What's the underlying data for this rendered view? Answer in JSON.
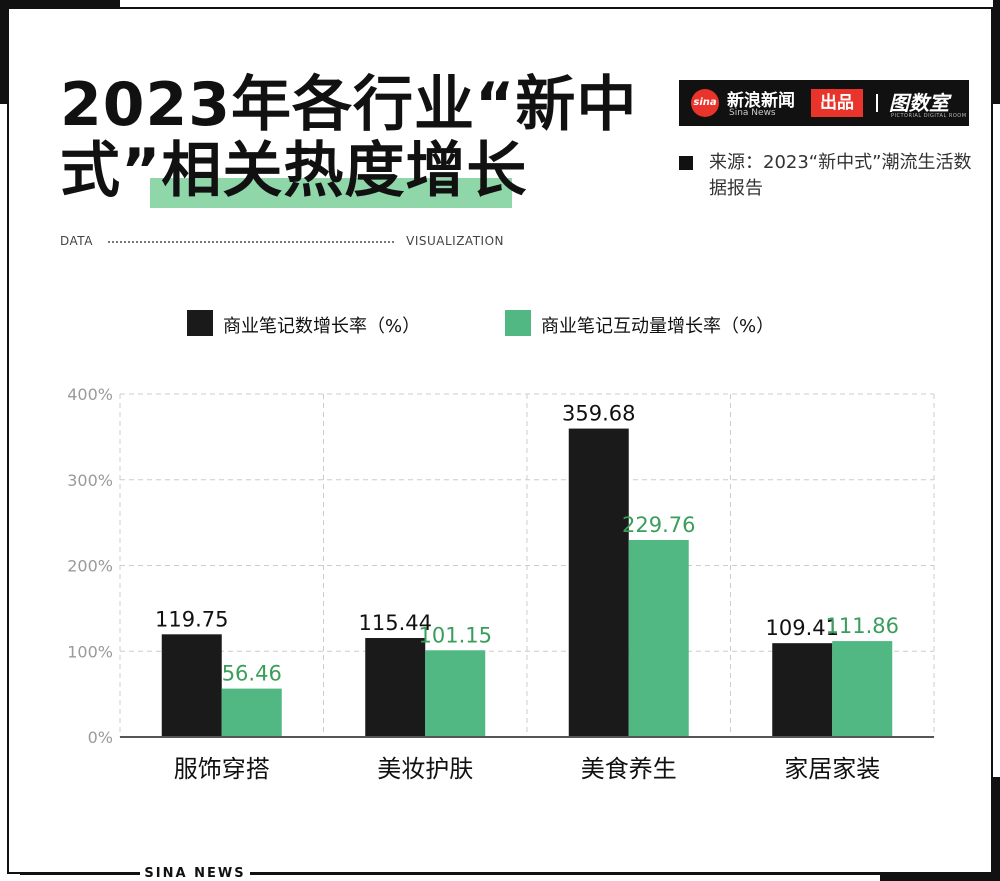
{
  "header": {
    "title_line1": "2023年各行业“新中",
    "title_line2": "式”相关热度增长",
    "data_label": "DATA",
    "viz_label": "VISUALIZATION"
  },
  "brand": {
    "logo_text": "sina",
    "name_cn": "新浪新闻",
    "name_en": "Sina News",
    "produced": "出品",
    "program": "图数室",
    "program_sub": "PICTORIAL DIGITAL ROOM"
  },
  "source": {
    "text": "来源：2023“新中式”潮流生活数据报告"
  },
  "footer": {
    "text": "SINA NEWS"
  },
  "colors": {
    "series1": "#1a1a1a",
    "series2": "#52b883",
    "series2_label": "#3a9e5a",
    "highlight": "#8fd6a8",
    "brand_red": "#e8342a"
  },
  "chart_data": {
    "type": "bar",
    "categories": [
      "服饰穿搭",
      "美妆护肤",
      "美食养生",
      "家居家装"
    ],
    "series": [
      {
        "name": "商业笔记数增长率（%）",
        "values": [
          119.75,
          115.44,
          359.68,
          109.41
        ],
        "labels": [
          "119.75",
          "115.44",
          "359.68",
          "109.41"
        ]
      },
      {
        "name": "商业笔记互动量增长率（%）",
        "values": [
          56.46,
          101.15,
          229.76,
          111.86
        ],
        "labels": [
          "56.46",
          "101.15",
          "229.76",
          "111.86"
        ]
      }
    ],
    "yticks": [
      "0%",
      "100%",
      "200%",
      "300%",
      "400%"
    ],
    "ylim": [
      0,
      400
    ],
    "grid": true,
    "legend": "top"
  }
}
